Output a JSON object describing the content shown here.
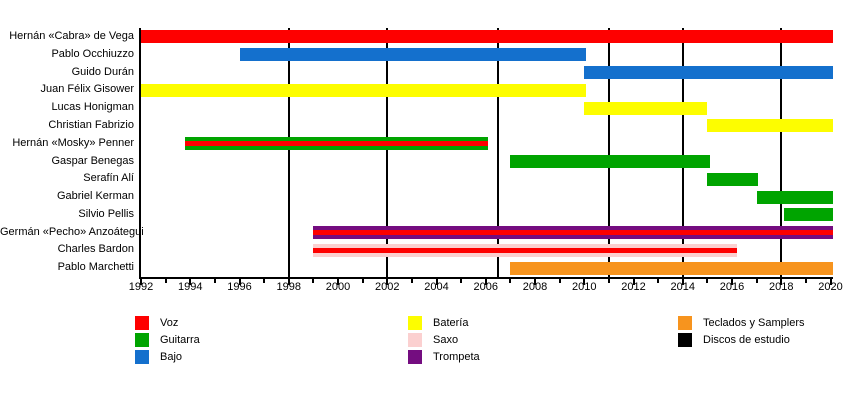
{
  "chart_data": {
    "type": "bar",
    "subtype": "timeline_gantt_band_members",
    "x_range": [
      1992,
      2020.1
    ],
    "x_major_ticks": [
      1992,
      1994,
      1996,
      1998,
      2000,
      2002,
      2004,
      2006,
      2008,
      2010,
      2012,
      2014,
      2016,
      2018,
      2020
    ],
    "x_minor_step": 1,
    "grid": false,
    "palette": {
      "voz_red": "#fe0000",
      "guitarra_green": "#00a400",
      "bajo_blue": "#1470cd",
      "bateria_yellow": "#fdfd00",
      "saxo_pink": "#fbd0d0",
      "trompeta_purple": "#740d80",
      "teclados_orange": "#f7941e",
      "discos_black": "#000000"
    },
    "members": [
      {
        "name": "Hernán «Cabra» de Vega",
        "instrument": "Voz",
        "color": "voz_red",
        "stripe": null,
        "start": 1992,
        "end": 2020.1
      },
      {
        "name": "Pablo Occhiuzzo",
        "instrument": "Bajo",
        "color": "bajo_blue",
        "stripe": null,
        "start": 1996,
        "end": 2010.05
      },
      {
        "name": "Guido Durán",
        "instrument": "Bajo",
        "color": "bajo_blue",
        "stripe": null,
        "start": 2010,
        "end": 2020.1
      },
      {
        "name": "Juan Félix Gisower",
        "instrument": "Batería",
        "color": "bateria_yellow",
        "stripe": null,
        "start": 1992,
        "end": 2010.05
      },
      {
        "name": "Lucas Honigman",
        "instrument": "Batería",
        "color": "bateria_yellow",
        "stripe": null,
        "start": 2010,
        "end": 2015
      },
      {
        "name": "Christian Fabrizio",
        "instrument": "Batería",
        "color": "bateria_yellow",
        "stripe": null,
        "start": 2015,
        "end": 2020.1
      },
      {
        "name": "Hernán «Mosky» Penner",
        "instrument": "Guitarra",
        "color": "guitarra_green",
        "stripe": "voz_red",
        "start": 1993.8,
        "end": 2006.1
      },
      {
        "name": "Gaspar Benegas",
        "instrument": "Guitarra",
        "color": "guitarra_green",
        "stripe": null,
        "start": 2007,
        "end": 2015.1
      },
      {
        "name": "Serafín Alí",
        "instrument": "Guitarra",
        "color": "guitarra_green",
        "stripe": null,
        "start": 2015,
        "end": 2017.05
      },
      {
        "name": "Gabriel Kerman",
        "instrument": "Guitarra",
        "color": "guitarra_green",
        "stripe": null,
        "start": 2017,
        "end": 2020.1
      },
      {
        "name": "Silvio Pellis",
        "instrument": "Guitarra",
        "color": "guitarra_green",
        "stripe": null,
        "start": 2018.1,
        "end": 2020.1
      },
      {
        "name": "Germán «Pecho» Anzoátegui",
        "instrument": "Trompeta",
        "color": "trompeta_purple",
        "stripe": "voz_red",
        "start": 1999,
        "end": 2020.1
      },
      {
        "name": "Charles Bardon",
        "instrument": "Saxo",
        "color": "saxo_pink",
        "stripe": "voz_red",
        "start": 1999,
        "end": 2016.2
      },
      {
        "name": "Pablo Marchetti",
        "instrument": "Teclados y Samplers",
        "color": "teclados_orange",
        "stripe": null,
        "start": 2007,
        "end": 2020.1
      }
    ],
    "album_lines": {
      "legend_label": "Discos de estudio",
      "color": "discos_black",
      "years": [
        1998,
        2002,
        2006.5,
        2011,
        2014,
        2018
      ]
    },
    "legend": {
      "columns": [
        {
          "items": [
            {
              "label": "Voz",
              "color": "voz_red"
            },
            {
              "label": "Guitarra",
              "color": "guitarra_green"
            },
            {
              "label": "Bajo",
              "color": "bajo_blue"
            }
          ]
        },
        {
          "items": [
            {
              "label": "Batería",
              "color": "bateria_yellow"
            },
            {
              "label": "Saxo",
              "color": "saxo_pink"
            },
            {
              "label": "Trompeta",
              "color": "trompeta_purple"
            }
          ]
        },
        {
          "items": [
            {
              "label": "Teclados y Samplers",
              "color": "teclados_orange"
            },
            {
              "label": "Discos de estudio",
              "color": "discos_black"
            }
          ]
        }
      ]
    }
  }
}
